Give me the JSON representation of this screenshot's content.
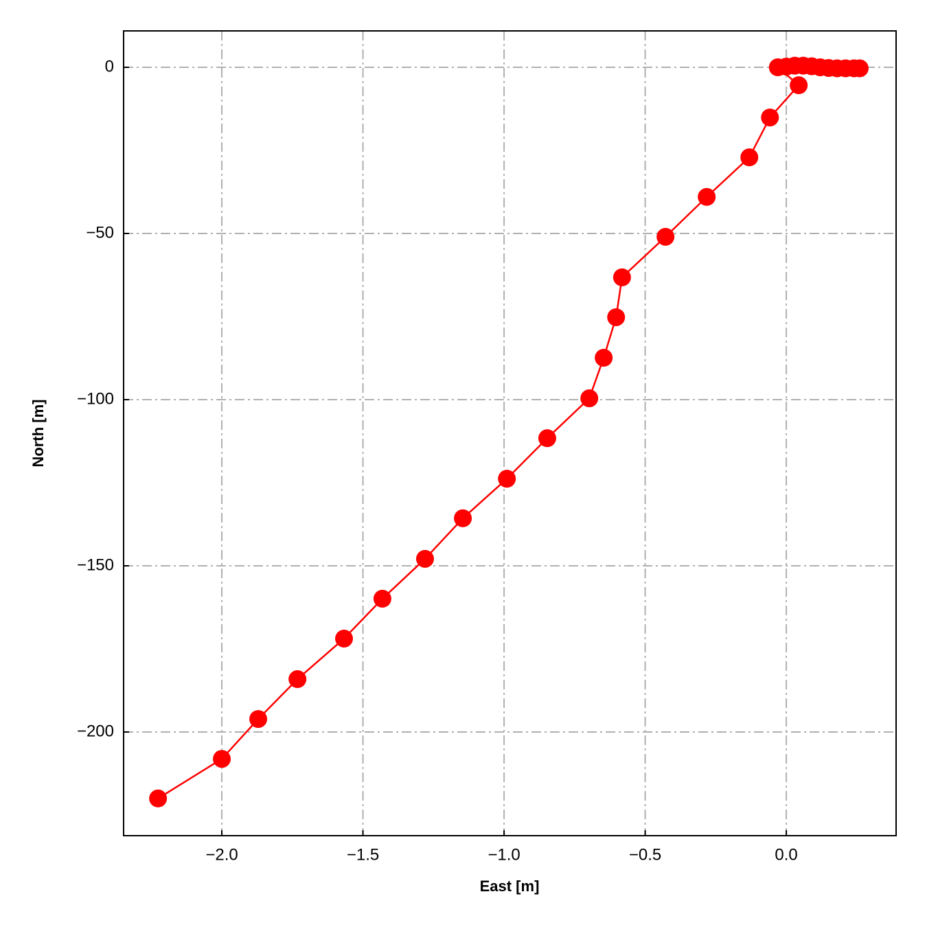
{
  "chart_data": {
    "type": "line",
    "xlabel": "East [m]",
    "ylabel": "North [m]",
    "series": [
      {
        "color": "#ff0000",
        "x": [
          -2.226,
          -2.0,
          -1.871,
          -1.732,
          -1.567,
          -1.431,
          -1.28,
          -1.146,
          -0.99,
          -0.847,
          -0.698,
          -0.647,
          -0.603,
          -0.582,
          -0.428,
          -0.282,
          -0.131,
          -0.058,
          0.044,
          -0.03,
          0.0,
          0.03,
          0.06,
          0.09,
          0.12,
          0.15,
          0.18,
          0.21,
          0.24,
          0.26
        ],
        "values": [
          -220.0,
          -208.1,
          -196.1,
          -184.1,
          -171.9,
          -159.9,
          -147.9,
          -135.7,
          -123.8,
          -111.6,
          -99.6,
          -87.4,
          -75.2,
          -63.2,
          -51.0,
          -39.0,
          -27.1,
          -15.1,
          -5.4,
          0.0,
          0.2,
          0.5,
          0.5,
          0.3,
          0.0,
          -0.2,
          -0.3,
          -0.3,
          -0.3,
          -0.3
        ]
      }
    ],
    "xlim": [
      -2.348,
      0.389
    ],
    "ylim": [
      -231.2,
      10.95
    ],
    "xticks": [
      {
        "value": -2.0,
        "label": "−2.0"
      },
      {
        "value": -1.5,
        "label": "−1.5"
      },
      {
        "value": -1.0,
        "label": "−1.0"
      },
      {
        "value": -0.5,
        "label": "−0.5"
      },
      {
        "value": 0.0,
        "label": "0.0"
      }
    ],
    "yticks": [
      0,
      {
        "value": -50,
        "label": "−50"
      },
      {
        "value": -100,
        "label": "−100"
      },
      {
        "value": -150,
        "label": "−150"
      },
      {
        "value": -200,
        "label": "−200"
      }
    ],
    "grid": true
  }
}
